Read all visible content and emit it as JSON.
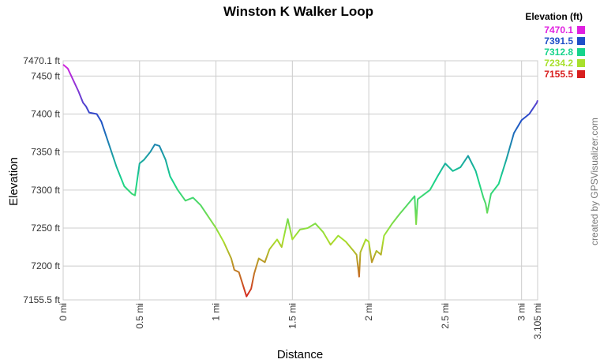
{
  "chart_data": {
    "type": "line",
    "title": "Winston K Walker Loop",
    "x_label": "Distance",
    "y_label": "Elevation",
    "annotation": "created by GPSVisualizer.com",
    "grid": true,
    "xlim": [
      0,
      3.105
    ],
    "ylim": [
      7155.5,
      7470.1
    ],
    "xticks": [
      {
        "value": 0,
        "label": "0 mi"
      },
      {
        "value": 0.5,
        "label": "0.5 mi"
      },
      {
        "value": 1,
        "label": "1 mi"
      },
      {
        "value": 1.5,
        "label": "1.5 mi"
      },
      {
        "value": 2,
        "label": "2 mi"
      },
      {
        "value": 2.5,
        "label": "2.5 mi"
      },
      {
        "value": 3,
        "label": "3 mi"
      },
      {
        "value": 3.105,
        "label": "3.105 mi"
      }
    ],
    "yticks": [
      {
        "value": 7155.5,
        "label": "7155.5 ft"
      },
      {
        "value": 7200,
        "label": "7200 ft"
      },
      {
        "value": 7250,
        "label": "7250 ft"
      },
      {
        "value": 7300,
        "label": "7300 ft"
      },
      {
        "value": 7350,
        "label": "7350 ft"
      },
      {
        "value": 7400,
        "label": "7400 ft"
      },
      {
        "value": 7450,
        "label": "7450 ft"
      },
      {
        "value": 7470.1,
        "label": "7470.1 ft"
      }
    ],
    "color_scale": {
      "title": "Elevation (ft)",
      "values": [
        7470.1,
        7391.5,
        7312.8,
        7234.2,
        7155.5
      ],
      "colors": [
        "#e020e0",
        "#1f4fc8",
        "#17d48c",
        "#a8e02c",
        "#d81e1e"
      ]
    },
    "x": [
      0,
      0.03,
      0.1,
      0.13,
      0.15,
      0.17,
      0.22,
      0.25,
      0.3,
      0.35,
      0.4,
      0.45,
      0.47,
      0.5,
      0.53,
      0.57,
      0.6,
      0.63,
      0.67,
      0.7,
      0.75,
      0.8,
      0.85,
      0.9,
      0.95,
      1.0,
      1.05,
      1.1,
      1.12,
      1.15,
      1.2,
      1.23,
      1.25,
      1.28,
      1.32,
      1.35,
      1.4,
      1.43,
      1.47,
      1.5,
      1.55,
      1.6,
      1.65,
      1.7,
      1.75,
      1.8,
      1.85,
      1.9,
      1.92,
      1.937,
      1.945,
      1.98,
      2.0,
      2.02,
      2.05,
      2.08,
      2.1,
      2.15,
      2.2,
      2.25,
      2.3,
      2.31,
      2.32,
      2.4,
      2.45,
      2.5,
      2.55,
      2.6,
      2.65,
      2.7,
      2.75,
      2.765,
      2.775,
      2.8,
      2.85,
      2.9,
      2.95,
      3.0,
      3.05,
      3.1,
      3.105
    ],
    "values": [
      7465,
      7460,
      7430,
      7415,
      7410,
      7402,
      7400,
      7390,
      7360,
      7330,
      7305,
      7295,
      7293,
      7335,
      7340,
      7350,
      7360,
      7358,
      7340,
      7318,
      7300,
      7286,
      7290,
      7280,
      7265,
      7250,
      7232,
      7210,
      7195,
      7192,
      7160,
      7170,
      7190,
      7210,
      7205,
      7222,
      7235,
      7225,
      7262,
      7235,
      7248,
      7250,
      7256,
      7245,
      7228,
      7240,
      7232,
      7220,
      7215,
      7186,
      7218,
      7235,
      7232,
      7205,
      7220,
      7215,
      7240,
      7255,
      7268,
      7280,
      7292,
      7255,
      7288,
      7300,
      7318,
      7335,
      7325,
      7330,
      7345,
      7325,
      7290,
      7282,
      7270,
      7295,
      7308,
      7340,
      7375,
      7392,
      7400,
      7415,
      7418
    ]
  }
}
